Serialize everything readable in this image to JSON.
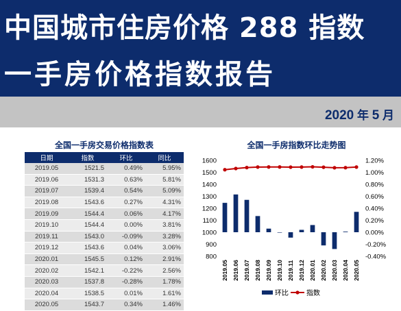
{
  "header": {
    "title_line1": "中国城市住房价格 288 指数",
    "title_line2": "一手房价格指数报告",
    "year": "2020",
    "year_unit": "年",
    "month": "5",
    "month_unit": "月"
  },
  "table": {
    "title": "全国一手房交易价格指数表",
    "columns": [
      "日期",
      "指数",
      "环比",
      "同比"
    ],
    "rows": [
      [
        "2019.05",
        "1521.5",
        "0.49%",
        "5.95%"
      ],
      [
        "2019.06",
        "1531.3",
        "0.63%",
        "5.81%"
      ],
      [
        "2019.07",
        "1539.4",
        "0.54%",
        "5.09%"
      ],
      [
        "2019.08",
        "1543.6",
        "0.27%",
        "4.31%"
      ],
      [
        "2019.09",
        "1544.4",
        "0.06%",
        "4.17%"
      ],
      [
        "2019.10",
        "1544.4",
        "0.00%",
        "3.81%"
      ],
      [
        "2019.11",
        "1543.0",
        "-0.09%",
        "3.28%"
      ],
      [
        "2019.12",
        "1543.6",
        "0.04%",
        "3.06%"
      ],
      [
        "2020.01",
        "1545.5",
        "0.12%",
        "2.91%"
      ],
      [
        "2020.02",
        "1542.1",
        "-0.22%",
        "2.56%"
      ],
      [
        "2020.03",
        "1537.8",
        "-0.28%",
        "1.78%"
      ],
      [
        "2020.04",
        "1538.5",
        "0.01%",
        "1.61%"
      ],
      [
        "2020.05",
        "1543.7",
        "0.34%",
        "1.46%"
      ]
    ]
  },
  "chart_data": {
    "type": "bar",
    "title": "全国一手房指数环比走势图",
    "categories": [
      "2019.05",
      "2019.06",
      "2019.07",
      "2019.08",
      "2019.09",
      "2019.10",
      "2019.11",
      "2019.12",
      "2020.01",
      "2020.02",
      "2020.03",
      "2020.04",
      "2020.05"
    ],
    "series": [
      {
        "name": "环比",
        "type": "bar",
        "axis": "right",
        "color": "#0d2c6c",
        "values": [
          0.49,
          0.63,
          0.54,
          0.27,
          0.06,
          0.0,
          -0.09,
          0.04,
          0.12,
          -0.22,
          -0.28,
          0.01,
          0.34
        ]
      },
      {
        "name": "指数",
        "type": "line",
        "axis": "left",
        "color": "#c00000",
        "values": [
          1521.5,
          1531.3,
          1539.4,
          1543.6,
          1544.4,
          1544.4,
          1543.0,
          1543.6,
          1545.5,
          1542.1,
          1537.8,
          1538.5,
          1543.7
        ]
      }
    ],
    "ylim_left": [
      800,
      1600
    ],
    "yticks_left": [
      "1600",
      "1500",
      "1400",
      "1300",
      "1200",
      "1100",
      "1000",
      "900",
      "800"
    ],
    "ylim_right": [
      -0.4,
      1.2
    ],
    "yticks_right": [
      "1.20%",
      "1.00%",
      "0.80%",
      "0.60%",
      "0.40%",
      "0.20%",
      "0.00%",
      "-0.20%",
      "-0.40%"
    ],
    "grid": false,
    "legend_position": "bottom"
  }
}
